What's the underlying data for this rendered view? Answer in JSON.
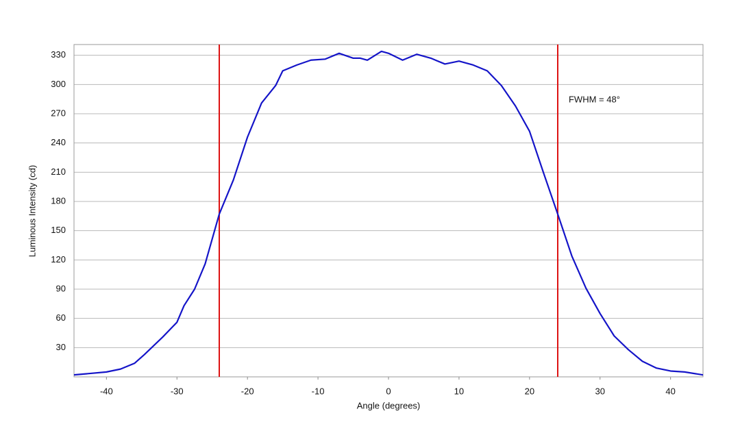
{
  "chart_data": {
    "type": "line",
    "x_label": "Angle (degrees)",
    "y_label": "Luminous Intensity (cd)",
    "annotation": "FWHM = 48°",
    "x": [
      -44.6,
      -40,
      -38,
      -36,
      -34.6,
      -32,
      -30,
      -29,
      -27.5,
      -26,
      -24,
      -22,
      -20,
      -18,
      -16,
      -15,
      -13,
      -11,
      -9,
      -7,
      -5,
      -4,
      -3,
      -1,
      0,
      2,
      4,
      6,
      8,
      10,
      12,
      14,
      16,
      18,
      20,
      22,
      24,
      26,
      28,
      30,
      32,
      34,
      36,
      38,
      40,
      42,
      44.6
    ],
    "series": [
      {
        "color": "#1414c8",
        "values": [
          2,
          5,
          8,
          14,
          23,
          41,
          56,
          73,
          90,
          116,
          167,
          202,
          246,
          281,
          299,
          314,
          320,
          325,
          326,
          332,
          327,
          327,
          325,
          334,
          332,
          325,
          331,
          327,
          321,
          324,
          320,
          314,
          299,
          278,
          252,
          209,
          167,
          124,
          91,
          65,
          42,
          28,
          16,
          9,
          6,
          5,
          2
        ]
      }
    ],
    "reference_lines": [
      -24,
      24
    ],
    "reference_color": "#dd1111",
    "xlim": [
      -44.6,
      44.6
    ],
    "ylim": [
      0,
      341
    ],
    "xticks": [
      -40,
      -30,
      -20,
      -10,
      0,
      10,
      20,
      30,
      40
    ],
    "yticks": [
      30,
      60,
      90,
      120,
      150,
      180,
      210,
      240,
      270,
      300,
      330
    ],
    "grid": true
  }
}
